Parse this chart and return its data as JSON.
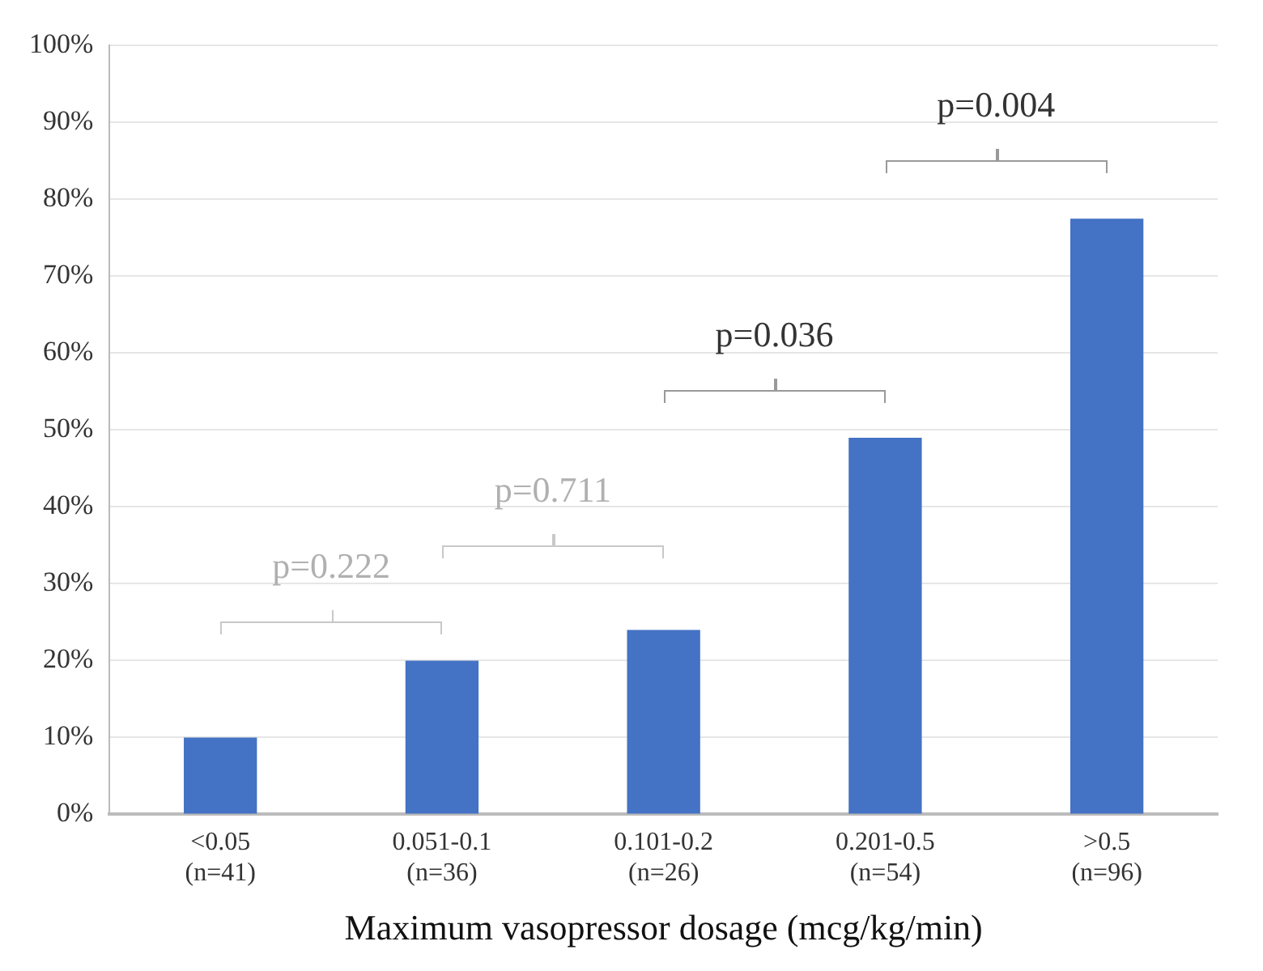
{
  "chart_data": {
    "type": "bar",
    "xlabel": "Maximum vasopressor dosage (mcg/kg/min)",
    "categories": [
      "<0.05\n(n=41)",
      "0.051-0.1\n(n=36)",
      "0.101-0.2\n(n=26)",
      "0.201-0.5\n(n=54)",
      ">0.5\n(n=96)"
    ],
    "values": [
      10,
      20,
      24,
      49,
      77.5
    ],
    "color": "#4472c4",
    "ylim": [
      0,
      100
    ],
    "yticks": [
      {
        "value": 0,
        "label": "0%"
      },
      {
        "value": 10,
        "label": "10%"
      },
      {
        "value": 20,
        "label": "20%"
      },
      {
        "value": 30,
        "label": "30%"
      },
      {
        "value": 40,
        "label": "40%"
      },
      {
        "value": 50,
        "label": "50%"
      },
      {
        "value": 60,
        "label": "60%"
      },
      {
        "value": 70,
        "label": "70%"
      },
      {
        "value": 80,
        "label": "80%"
      },
      {
        "value": 90,
        "label": "90%"
      },
      {
        "value": 100,
        "label": "100%"
      }
    ],
    "grid": "y",
    "legend": false,
    "annotations": [
      "p=0.222",
      "p=0.711",
      "p=0.036",
      "p=0.004"
    ]
  }
}
